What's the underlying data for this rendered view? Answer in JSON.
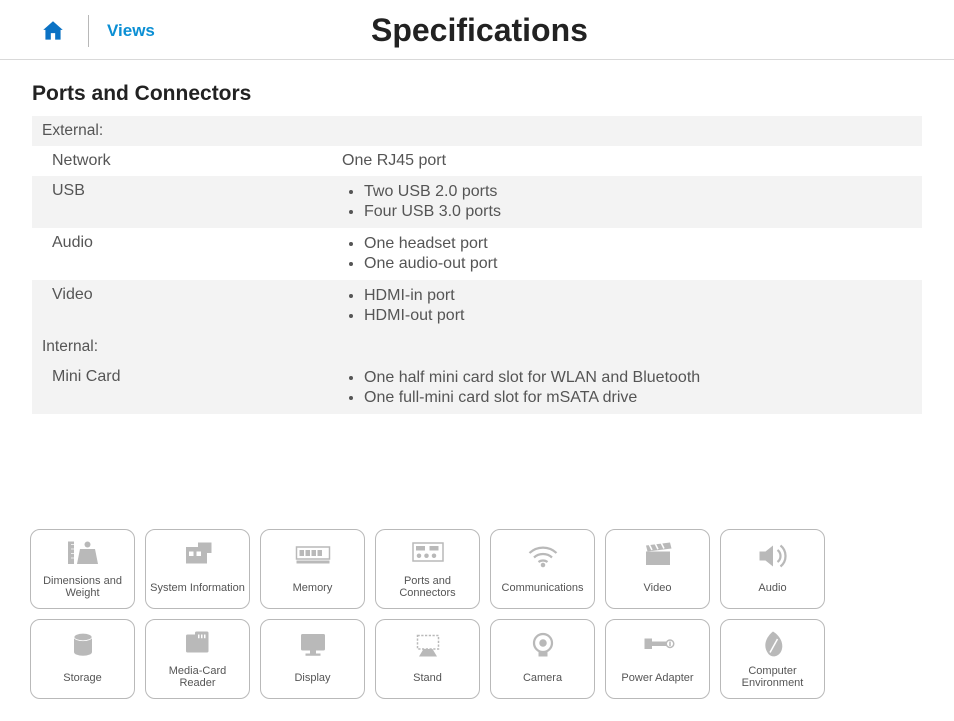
{
  "header": {
    "views_label": "Views",
    "page_title": "Specifications"
  },
  "section": {
    "title": "Ports and Connectors",
    "groups": [
      {
        "heading": "External:",
        "rows": [
          {
            "label": "Network",
            "values": [
              "One RJ45 port"
            ],
            "bulleted": false,
            "alt": false
          },
          {
            "label": "USB",
            "values": [
              "Two USB 2.0 ports",
              "Four USB 3.0 ports"
            ],
            "bulleted": true,
            "alt": true
          },
          {
            "label": "Audio",
            "values": [
              "One headset port",
              "One audio-out port"
            ],
            "bulleted": true,
            "alt": false
          },
          {
            "label": "Video",
            "values": [
              "HDMI-in port",
              "HDMI-out port"
            ],
            "bulleted": true,
            "alt": true
          }
        ]
      },
      {
        "heading": "Internal:",
        "rows": [
          {
            "label": "Mini Card",
            "values": [
              "One half mini card slot for WLAN and Bluetooth",
              "One full-mini card slot for mSATA drive"
            ],
            "bulleted": true,
            "alt": true
          }
        ]
      }
    ]
  },
  "nav": {
    "items": [
      {
        "id": "dimensions-weight",
        "label": "Dimensions and Weight",
        "icon": "ruler-weight"
      },
      {
        "id": "system-information",
        "label": "System Information",
        "icon": "chip-board"
      },
      {
        "id": "memory",
        "label": "Memory",
        "icon": "ram"
      },
      {
        "id": "ports-connectors",
        "label": "Ports and Connectors",
        "icon": "ports"
      },
      {
        "id": "communications",
        "label": "Communications",
        "icon": "wifi"
      },
      {
        "id": "video",
        "label": "Video",
        "icon": "clapper"
      },
      {
        "id": "audio",
        "label": "Audio",
        "icon": "speaker"
      },
      {
        "id": "storage",
        "label": "Storage",
        "icon": "drive"
      },
      {
        "id": "media-card-reader",
        "label": "Media-Card Reader",
        "icon": "sdcard"
      },
      {
        "id": "display",
        "label": "Display",
        "icon": "monitor"
      },
      {
        "id": "stand",
        "label": "Stand",
        "icon": "stand"
      },
      {
        "id": "camera",
        "label": "Camera",
        "icon": "camera"
      },
      {
        "id": "power-adapter",
        "label": "Power Adapter",
        "icon": "power"
      },
      {
        "id": "computer-environment",
        "label": "Computer Environment",
        "icon": "leaf"
      }
    ]
  },
  "colors": {
    "link": "#0b8fd4",
    "icon_gray": "#b9b9b9",
    "row_alt_bg": "#f3f3f3",
    "border": "#b9b9b9",
    "text": "#555555",
    "title": "#222222"
  }
}
